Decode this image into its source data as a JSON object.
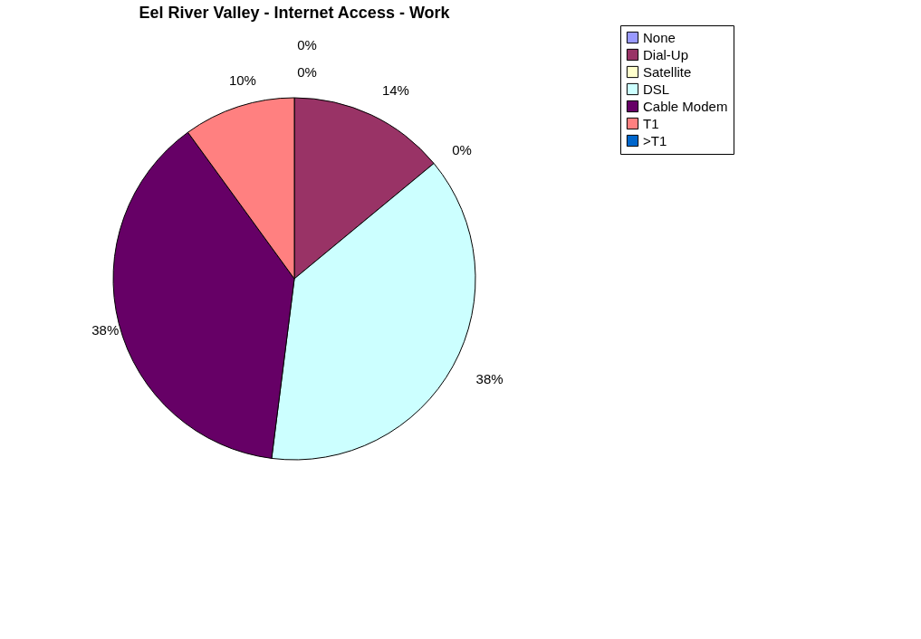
{
  "chart_data": {
    "type": "pie",
    "title": "Eel River Valley - Internet Access - Work",
    "categories": [
      "None",
      "Dial-Up",
      "Satellite",
      "DSL",
      "Cable Modem",
      "T1",
      ">T1"
    ],
    "values": [
      0,
      14,
      0,
      38,
      38,
      10,
      0
    ],
    "colors": [
      "#9999ff",
      "#993366",
      "#ffffcc",
      "#ccffff",
      "#660066",
      "#ff8080",
      "#0066cc"
    ],
    "value_labels": [
      "0%",
      "14%",
      "0%",
      "38%",
      "38%",
      "10%",
      "0%"
    ],
    "legend": "right"
  }
}
